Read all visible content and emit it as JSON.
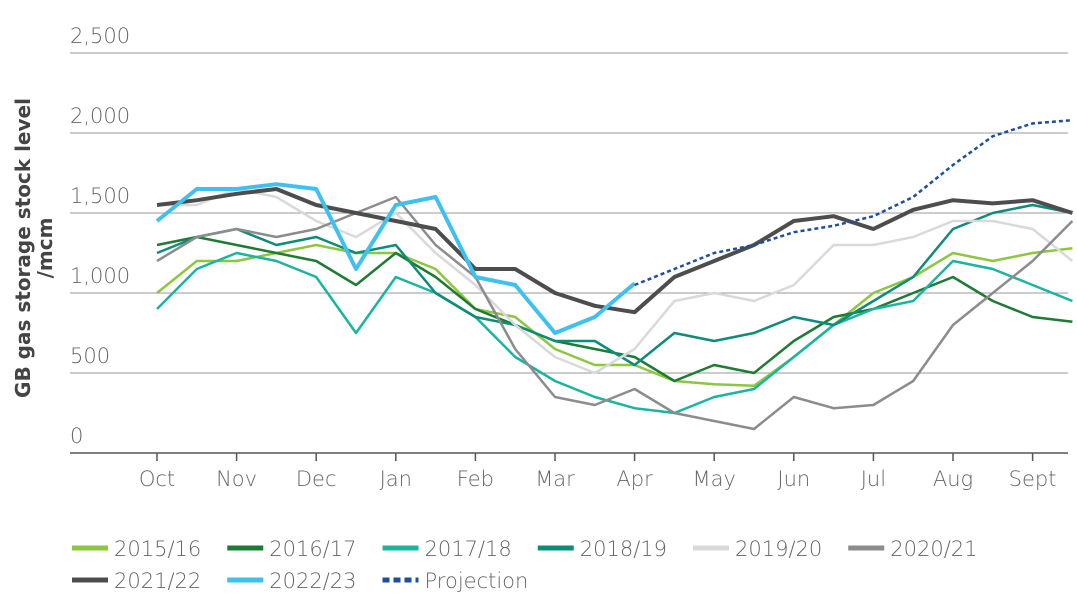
{
  "chart_data": {
    "type": "line",
    "y_label": [
      "GB gas storage stock level",
      "/mcm"
    ],
    "categories": [
      "Oct",
      null,
      "Nov",
      null,
      "Dec",
      null,
      "Jan",
      null,
      "Feb",
      null,
      "Mar",
      null,
      "Apr",
      null,
      "May",
      null,
      "Jun",
      null,
      "Jul",
      null,
      "Aug",
      null,
      "Sept",
      null
    ],
    "ylim": [
      0,
      2500
    ],
    "yticks": [
      0,
      500,
      {
        "value": 1000,
        "label": "1,000"
      },
      {
        "value": 1500,
        "label": "1,500"
      },
      {
        "value": 2000,
        "label": "2,000"
      },
      {
        "value": 2500,
        "label": "2,500"
      }
    ],
    "grid": true,
    "legend": "bottom",
    "series": [
      {
        "name": "2015/16",
        "color": "#8dc63f",
        "values": [
          1000,
          1200,
          1200,
          1250,
          1300,
          1250,
          1250,
          1150,
          900,
          850,
          650,
          550,
          550,
          450,
          430,
          420,
          600,
          800,
          1000,
          1100,
          1250,
          1200,
          1250,
          1280
        ]
      },
      {
        "name": "2016/17",
        "color": "#1e7b34",
        "values": [
          1300,
          1350,
          1300,
          1250,
          1200,
          1050,
          1250,
          1100,
          900,
          800,
          700,
          650,
          600,
          450,
          550,
          500,
          700,
          850,
          900,
          1000,
          1100,
          950,
          850,
          820
        ]
      },
      {
        "name": "2017/18",
        "color": "#19b5a0",
        "values": [
          900,
          1150,
          1250,
          1200,
          1100,
          750,
          1100,
          1000,
          850,
          600,
          450,
          350,
          280,
          250,
          350,
          400,
          600,
          800,
          900,
          950,
          1200,
          1150,
          1050,
          950
        ]
      },
      {
        "name": "2018/19",
        "color": "#0e8c7a",
        "values": [
          1250,
          1350,
          1400,
          1300,
          1350,
          1250,
          1300,
          1000,
          850,
          800,
          700,
          700,
          550,
          750,
          700,
          750,
          850,
          800,
          950,
          1100,
          1400,
          1500,
          1550,
          1500
        ]
      },
      {
        "name": "2019/20",
        "color": "#d9d9d9",
        "values": [
          1550,
          1550,
          1650,
          1600,
          1450,
          1350,
          1500,
          1250,
          1050,
          800,
          600,
          500,
          650,
          950,
          1000,
          950,
          1050,
          1300,
          1300,
          1350,
          1450,
          1450,
          1400,
          1200
        ]
      },
      {
        "name": "2020/21",
        "color": "#8c8c8c",
        "values": [
          1200,
          1350,
          1400,
          1350,
          1400,
          1500,
          1600,
          1300,
          1100,
          650,
          350,
          300,
          400,
          250,
          200,
          150,
          350,
          280,
          300,
          450,
          800,
          1000,
          1200,
          1450
        ]
      },
      {
        "name": "2021/22",
        "color": "#4d4d4d",
        "values": [
          1550,
          1580,
          1620,
          1650,
          1550,
          1500,
          1450,
          1400,
          1150,
          1150,
          1000,
          920,
          880,
          1100,
          1200,
          1300,
          1450,
          1480,
          1400,
          1520,
          1580,
          1560,
          1580,
          1500
        ]
      },
      {
        "name": "2022/23",
        "color": "#3ec1ef",
        "values": [
          1450,
          1650,
          1650,
          1680,
          1650,
          1150,
          1550,
          1600,
          1100,
          1050,
          750,
          850,
          1060,
          null,
          null,
          null,
          null,
          null,
          null,
          null,
          null,
          null,
          null,
          null
        ]
      },
      {
        "name": "Projection",
        "color": "#1f4e9c",
        "dashed": true,
        "values": [
          null,
          null,
          null,
          null,
          null,
          null,
          null,
          null,
          null,
          null,
          null,
          null,
          1050,
          1150,
          1250,
          1300,
          1380,
          1420,
          1480,
          1600,
          1800,
          1980,
          2060,
          2080
        ]
      }
    ]
  }
}
